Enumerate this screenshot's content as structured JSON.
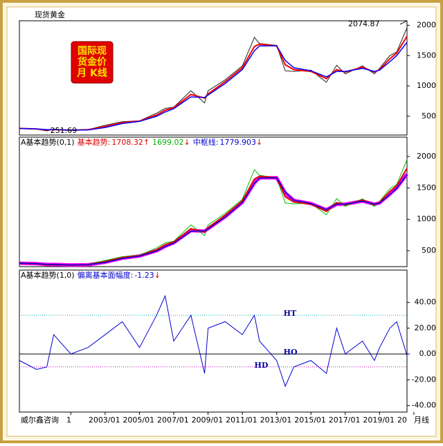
{
  "window_title": "现货黄金",
  "badge": [
    "国际现",
    "货金价",
    "月 K线"
  ],
  "footer": {
    "left": "威尔鑫咨询",
    "right": "月线"
  },
  "chart_data": [
    {
      "type": "line",
      "xlim": [
        1998,
        2020.6
      ],
      "ylim": [
        190,
        2075
      ],
      "yticks": [
        500,
        1000,
        1500,
        2000
      ],
      "x": [
        1998,
        1999,
        1999.6,
        2000,
        2001,
        2002,
        2003,
        2004,
        2005,
        2006,
        2006.5,
        2007,
        2008,
        2008.8,
        2009,
        2010,
        2011,
        2011.7,
        2012,
        2013,
        2013.5,
        2014,
        2015,
        2015.9,
        2016.5,
        2017,
        2018,
        2018.7,
        2019,
        2019.6,
        2020,
        2020.6
      ],
      "series": [
        {
          "color": "#202020",
          "values": [
            295,
            287,
            258,
            285,
            265,
            280,
            350,
            410,
            425,
            550,
            630,
            650,
            920,
            720,
            920,
            1100,
            1330,
            1800,
            1700,
            1670,
            1250,
            1240,
            1260,
            1060,
            1340,
            1200,
            1330,
            1200,
            1290,
            1500,
            1560,
            1960
          ]
        },
        {
          "color": "#ff0000",
          "values": [
            300,
            290,
            275,
            280,
            270,
            278,
            330,
            395,
            420,
            520,
            600,
            640,
            860,
            800,
            870,
            1070,
            1300,
            1650,
            1690,
            1660,
            1350,
            1270,
            1240,
            1120,
            1270,
            1230,
            1310,
            1230,
            1270,
            1450,
            1540,
            1820
          ]
        },
        {
          "color": "#0000ff",
          "values": [
            300,
            292,
            280,
            280,
            272,
            275,
            315,
            380,
            415,
            500,
            570,
            625,
            820,
            810,
            850,
            1040,
            1270,
            1580,
            1660,
            1660,
            1420,
            1300,
            1250,
            1150,
            1240,
            1240,
            1290,
            1240,
            1260,
            1400,
            1500,
            1720
          ]
        }
      ],
      "annotations": [
        {
          "value": 2074.87,
          "x": 2020.6
        },
        {
          "value": 251.69,
          "x": 1999.6
        }
      ]
    },
    {
      "type": "line",
      "xlim": [
        1998,
        2020.6
      ],
      "ylim": [
        246,
        2308
      ],
      "yticks": [
        500,
        1000,
        1500,
        2000
      ],
      "indicator": "A基本趋势(0,1)",
      "readouts": [
        {
          "label": "基本趋势:",
          "value": 1708.32,
          "arrow": "↑",
          "color": "#e00000"
        },
        {
          "value": 1699.02,
          "arrow": "↓",
          "color": "#00b000"
        },
        {
          "label": "中枢线:",
          "value": 1779.903,
          "arrow": "↓",
          "color": "#0000d0"
        }
      ],
      "x": [
        1998,
        1999,
        1999.6,
        2000,
        2001,
        2002,
        2003,
        2004,
        2005,
        2006,
        2006.5,
        2007,
        2008,
        2008.8,
        2009,
        2010,
        2011,
        2011.7,
        2012,
        2013,
        2013.5,
        2014,
        2015,
        2015.9,
        2016.5,
        2017,
        2018,
        2018.7,
        2019,
        2019.6,
        2020,
        2020.6
      ],
      "series": [
        {
          "color": "#ff00ff",
          "values": [
            300,
            292,
            280,
            280,
            272,
            275,
            315,
            380,
            415,
            500,
            570,
            625,
            820,
            810,
            850,
            1040,
            1270,
            1580,
            1660,
            1660,
            1420,
            1300,
            1250,
            1150,
            1240,
            1240,
            1290,
            1240,
            1260,
            1400,
            1500,
            1720
          ]
        },
        {
          "color": "#00c000",
          "values": [
            305,
            295,
            272,
            285,
            268,
            282,
            345,
            405,
            428,
            545,
            625,
            650,
            910,
            740,
            910,
            1095,
            1320,
            1790,
            1700,
            1660,
            1260,
            1245,
            1255,
            1070,
            1330,
            1205,
            1325,
            1205,
            1285,
            1490,
            1555,
            1950
          ]
        },
        {
          "color": "#e00000",
          "values": [
            300,
            291,
            276,
            280,
            271,
            277,
            325,
            390,
            418,
            515,
            595,
            638,
            850,
            800,
            865,
            1065,
            1295,
            1640,
            1685,
            1660,
            1360,
            1275,
            1242,
            1125,
            1265,
            1232,
            1305,
            1232,
            1268,
            1445,
            1535,
            1810
          ]
        },
        {
          "color": "#0000d0",
          "values": [
            300,
            293,
            282,
            281,
            273,
            276,
            312,
            375,
            412,
            495,
            565,
            620,
            810,
            815,
            845,
            1035,
            1265,
            1570,
            1655,
            1662,
            1430,
            1305,
            1252,
            1155,
            1238,
            1242,
            1288,
            1242,
            1258,
            1395,
            1495,
            1710
          ]
        }
      ]
    },
    {
      "type": "line",
      "xlim": [
        1998,
        2020.6
      ],
      "ylim": [
        -45,
        65
      ],
      "yticks": [
        {
          "value": 40,
          "label": "40.00"
        },
        {
          "value": 20,
          "label": "20.00"
        },
        {
          "value": 0,
          "label": "0.00"
        },
        {
          "value": -20,
          "label": "-20.00"
        },
        {
          "value": -40,
          "label": "-40.00"
        }
      ],
      "xticks": [
        {
          "value": 2001,
          "label": "1/01"
        },
        {
          "value": 2003,
          "label": "2003/01"
        },
        {
          "value": 2005,
          "label": "2005/01"
        },
        {
          "value": 2007,
          "label": "2007/01"
        },
        {
          "value": 2009,
          "label": "2009/01"
        },
        {
          "value": 2011,
          "label": "2011/01"
        },
        {
          "value": 2013,
          "label": "2013/01"
        },
        {
          "value": 2015,
          "label": "2015/01"
        },
        {
          "value": 2017,
          "label": "2017/01"
        },
        {
          "value": 2019,
          "label": "2019/01"
        },
        {
          "value": 2021,
          "label": "20"
        }
      ],
      "indicator": "A基本趋势(1,0)",
      "readouts": [
        {
          "label": "偏离基本面幅度:",
          "value": -1.23,
          "arrow": "↓",
          "color": "#0000d0"
        }
      ],
      "reference_lines": [
        {
          "label": "HT",
          "value": 30,
          "color": "#00b0b0"
        },
        {
          "label": "HO",
          "value": 0,
          "color": "#000000"
        },
        {
          "label": "HD",
          "value": -10,
          "color": "#c000c0"
        }
      ],
      "x": [
        1998,
        1999,
        1999.6,
        2000,
        2001,
        2002,
        2003,
        2004,
        2005,
        2006,
        2006.5,
        2007,
        2008,
        2008.8,
        2009,
        2010,
        2011,
        2011.7,
        2012,
        2013,
        2013.5,
        2014,
        2015,
        2015.9,
        2016.5,
        2017,
        2018,
        2018.7,
        2019,
        2019.6,
        2020,
        2020.6
      ],
      "series": [
        {
          "color": "#0000d0",
          "values": [
            -5,
            -12,
            -10,
            15,
            0,
            5,
            15,
            25,
            5,
            30,
            45,
            10,
            30,
            -15,
            20,
            25,
            15,
            30,
            10,
            -5,
            -25,
            -10,
            -5,
            -15,
            20,
            0,
            10,
            -5,
            5,
            20,
            25,
            -1.23
          ]
        }
      ]
    }
  ]
}
